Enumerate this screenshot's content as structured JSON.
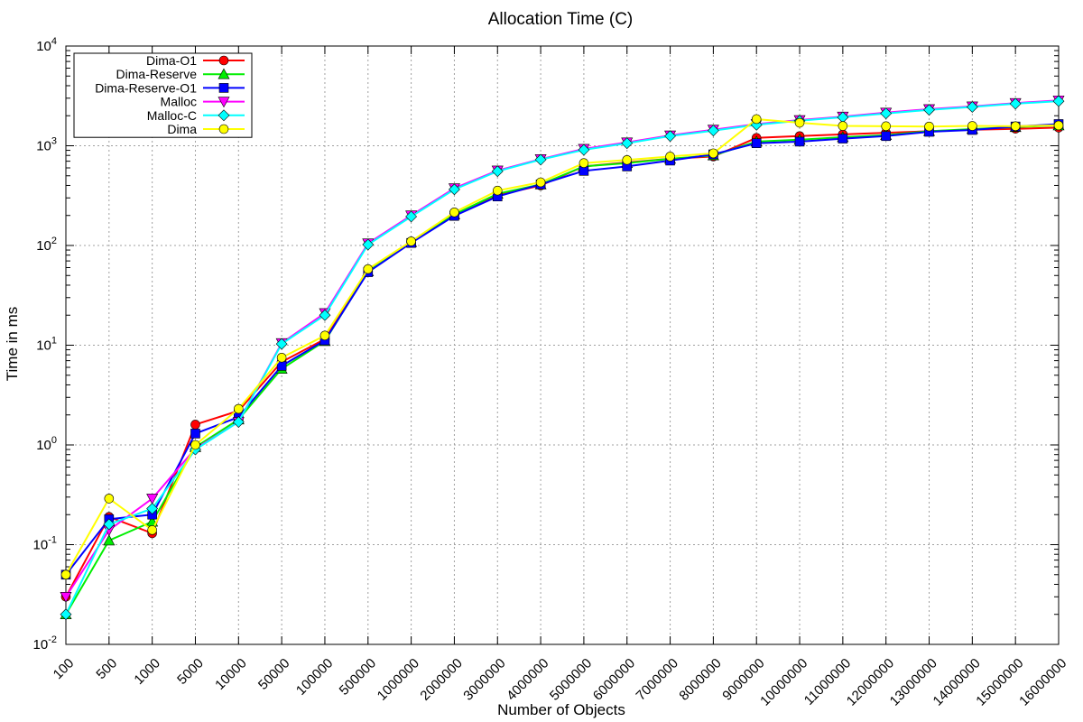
{
  "chart_data": {
    "type": "line",
    "title": "Allocation Time (C)",
    "xlabel": "Number of Objects",
    "ylabel": "Time in ms",
    "yscale": "log",
    "ylim": [
      0.01,
      10000
    ],
    "ytick_labels": [
      {
        "base": "10",
        "exp": "-2"
      },
      {
        "base": "10",
        "exp": "-1"
      },
      {
        "base": "10",
        "exp": "0"
      },
      {
        "base": "10",
        "exp": "1"
      },
      {
        "base": "10",
        "exp": "2"
      },
      {
        "base": "10",
        "exp": "3"
      },
      {
        "base": "10",
        "exp": "4"
      }
    ],
    "categories": [
      "100",
      "500",
      "1000",
      "5000",
      "10000",
      "50000",
      "100000",
      "500000",
      "1000000",
      "2000000",
      "3000000",
      "4000000",
      "5000000",
      "6000000",
      "7000000",
      "8000000",
      "9000000",
      "10000000",
      "11000000",
      "12000000",
      "13000000",
      "14000000",
      "15000000",
      "16000000"
    ],
    "grid": true,
    "legend_position": "top-left",
    "series": [
      {
        "name": "Dima-O1",
        "color": "#ff0000",
        "marker": "circle",
        "values": [
          0.03,
          0.19,
          0.13,
          1.6,
          2.2,
          6.8,
          11.5,
          55,
          108,
          200,
          320,
          400,
          620,
          680,
          740,
          780,
          1200,
          1250,
          1300,
          1350,
          1400,
          1450,
          1480,
          1520
        ]
      },
      {
        "name": "Dima-Reserve",
        "color": "#00ee00",
        "marker": "triangle-up",
        "values": [
          0.02,
          0.11,
          0.17,
          0.95,
          1.8,
          5.8,
          11,
          55,
          108,
          205,
          330,
          410,
          620,
          670,
          740,
          800,
          1100,
          1150,
          1220,
          1280,
          1400,
          1470,
          1540,
          1600
        ]
      },
      {
        "name": "Dima-Reserve-O1",
        "color": "#0000ff",
        "marker": "square",
        "values": [
          0.05,
          0.18,
          0.2,
          1.3,
          1.9,
          6.2,
          11.2,
          54,
          106,
          198,
          310,
          410,
          560,
          620,
          710,
          820,
          1060,
          1100,
          1180,
          1250,
          1380,
          1440,
          1560,
          1650
        ]
      },
      {
        "name": "Malloc",
        "color": "#ff00ff",
        "marker": "triangle-down",
        "values": [
          0.03,
          0.14,
          0.29,
          0.92,
          1.7,
          10.5,
          21,
          105,
          200,
          375,
          565,
          735,
          930,
          1080,
          1270,
          1450,
          1650,
          1810,
          1960,
          2150,
          2330,
          2480,
          2680,
          2850
        ]
      },
      {
        "name": "Malloc-C",
        "color": "#00ffff",
        "marker": "diamond",
        "values": [
          0.02,
          0.16,
          0.23,
          0.9,
          1.7,
          10.3,
          20,
          102,
          195,
          365,
          555,
          725,
          910,
          1060,
          1250,
          1420,
          1620,
          1780,
          1930,
          2110,
          2290,
          2450,
          2640,
          2800
        ]
      },
      {
        "name": "Dima",
        "color": "#ffff00",
        "marker": "circle",
        "values": [
          0.05,
          0.29,
          0.14,
          1.0,
          2.3,
          7.5,
          12.5,
          58,
          110,
          215,
          355,
          430,
          670,
          720,
          780,
          840,
          1850,
          1700,
          1580,
          1570,
          1560,
          1580,
          1570,
          1600
        ]
      }
    ]
  }
}
